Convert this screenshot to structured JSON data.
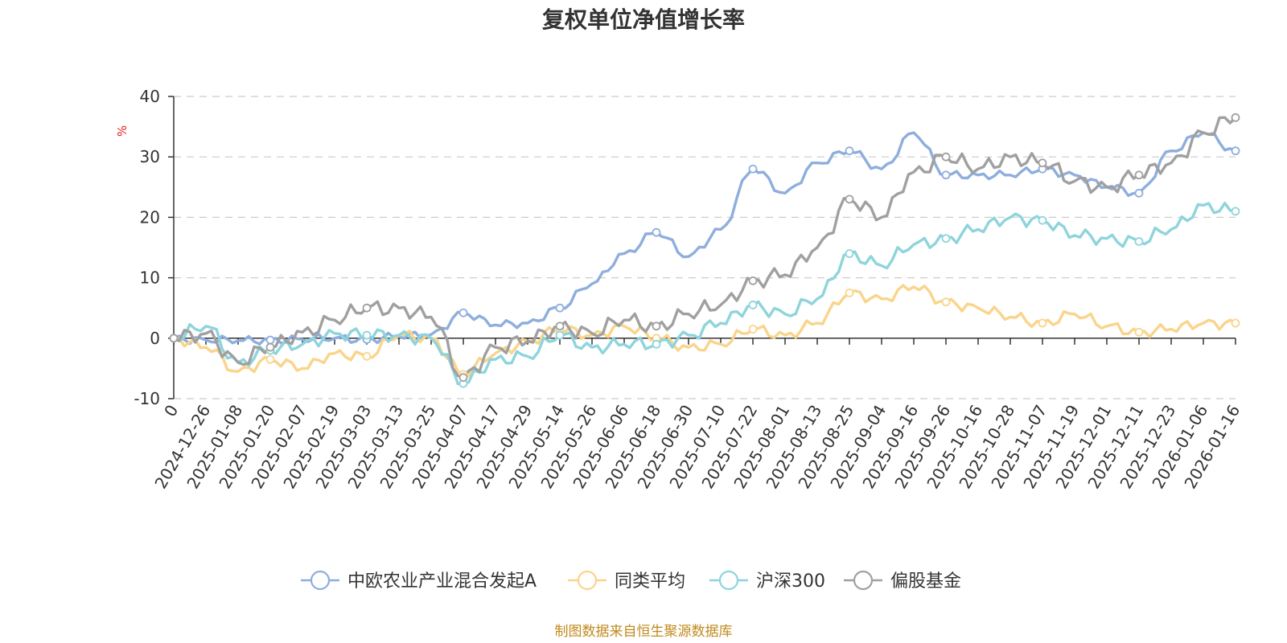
{
  "chart_data": {
    "type": "line",
    "title": "复权单位净值增长率",
    "ylabel": "%",
    "xlabel": "",
    "ylim": [
      -10,
      40
    ],
    "yticks": [
      -10,
      0,
      10,
      20,
      30,
      40
    ],
    "categories": [
      "0",
      "2024-12-26",
      "2025-01-08",
      "2025-01-20",
      "2025-02-07",
      "2025-02-19",
      "2025-03-03",
      "2025-03-13",
      "2025-03-25",
      "2025-04-07",
      "2025-04-17",
      "2025-04-29",
      "2025-05-14",
      "2025-05-26",
      "2025-06-06",
      "2025-06-18",
      "2025-06-30",
      "2025-07-10",
      "2025-07-22",
      "2025-08-01",
      "2025-08-13",
      "2025-08-25",
      "2025-09-04",
      "2025-09-16",
      "2025-09-26",
      "2025-10-16",
      "2025-10-28",
      "2025-11-07",
      "2025-11-19",
      "2025-12-01",
      "2025-12-11",
      "2025-12-23",
      "2026-01-06",
      "2026-01-16"
    ],
    "grid": true,
    "legend_position": "bottom-center",
    "source_note": "制图数据来自恒生聚源数据库",
    "series": [
      {
        "name": "中欧农业产业混合发起A",
        "color": "#8eaedd",
        "values": [
          0,
          -0.3,
          -0.4,
          -0.3,
          -0.2,
          0,
          -0.2,
          0.3,
          0.6,
          4.2,
          2.2,
          2.5,
          5,
          9,
          14,
          17.5,
          13.5,
          18,
          28,
          24,
          29,
          31,
          28,
          34,
          27,
          27,
          27,
          28,
          27,
          25,
          24,
          31,
          34,
          31
        ]
      },
      {
        "name": "同类平均",
        "color": "#fad48b",
        "values": [
          0,
          -1.5,
          -5.5,
          -3.5,
          -5,
          -2.5,
          -3,
          0.5,
          0,
          -6,
          -2.5,
          -0.5,
          1.5,
          0.5,
          2,
          0,
          -1.5,
          -1,
          1.5,
          0.5,
          2.5,
          7.5,
          6.5,
          8.5,
          6,
          5,
          3.5,
          2.5,
          4,
          2,
          1,
          1.5,
          2.5,
          2.5
        ]
      },
      {
        "name": "沪深300",
        "color": "#8ed4dc",
        "values": [
          0,
          2,
          -4,
          -2,
          -1,
          0.8,
          0.5,
          0.5,
          0,
          -7.5,
          -3.5,
          -3,
          0.5,
          -1.5,
          -1,
          -1,
          0.5,
          2.5,
          5.5,
          4,
          6.5,
          14,
          12,
          15.5,
          16.5,
          18,
          20,
          19.5,
          17,
          16.5,
          16,
          18,
          22,
          21
        ]
      },
      {
        "name": "偏股基金",
        "color": "#a0a0a0",
        "values": [
          0,
          0.8,
          -4,
          -1.5,
          1,
          3,
          5,
          5,
          3.5,
          -6.5,
          -1.5,
          -0.5,
          2,
          0.8,
          3,
          2,
          4,
          5.5,
          9.5,
          10.5,
          15,
          23,
          20,
          27.5,
          30,
          28,
          30,
          29,
          26,
          25,
          27,
          29,
          34,
          36.5
        ]
      }
    ]
  }
}
